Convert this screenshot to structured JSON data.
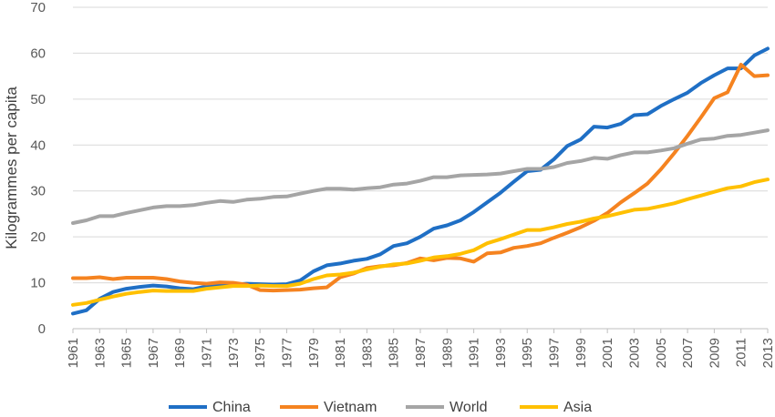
{
  "chart_data": {
    "type": "line",
    "title": "",
    "xlabel": "",
    "ylabel": "Kilogrammes per capita",
    "ylim": [
      0,
      70
    ],
    "y_ticks": [
      "0",
      "10",
      "20",
      "30",
      "40",
      "50",
      "60",
      "70"
    ],
    "x": [
      1961,
      1962,
      1963,
      1964,
      1965,
      1966,
      1967,
      1968,
      1969,
      1970,
      1971,
      1972,
      1973,
      1974,
      1975,
      1976,
      1977,
      1978,
      1979,
      1980,
      1981,
      1982,
      1983,
      1984,
      1985,
      1986,
      1987,
      1988,
      1989,
      1990,
      1991,
      1992,
      1993,
      1994,
      1995,
      1996,
      1997,
      1998,
      1999,
      2000,
      2001,
      2002,
      2003,
      2004,
      2005,
      2006,
      2007,
      2008,
      2009,
      2010,
      2011,
      2012,
      2013
    ],
    "x_ticks": [
      "1961",
      "1963",
      "1965",
      "1967",
      "1969",
      "1971",
      "1973",
      "1975",
      "1977",
      "1979",
      "1981",
      "1983",
      "1985",
      "1987",
      "1989",
      "1991",
      "1993",
      "1995",
      "1997",
      "1999",
      "2001",
      "2003",
      "2005",
      "2007",
      "2009",
      "2011",
      "2013"
    ],
    "grid": "horizontal",
    "legend_position": "bottom",
    "series": [
      {
        "name": "China",
        "color": "#1f6fc5",
        "values": [
          3.3,
          4.0,
          6.5,
          8.0,
          8.7,
          9.1,
          9.4,
          9.2,
          8.8,
          8.6,
          9.2,
          9.6,
          9.6,
          9.8,
          9.7,
          9.6,
          9.7,
          10.5,
          12.5,
          13.8,
          14.2,
          14.8,
          15.2,
          16.2,
          18.0,
          18.6,
          20.0,
          21.8,
          22.5,
          23.6,
          25.4,
          27.5,
          29.6,
          32.0,
          34.3,
          34.6,
          36.9,
          39.8,
          41.2,
          44.0,
          43.8,
          44.6,
          46.5,
          46.7,
          48.5,
          50.0,
          51.4,
          53.5,
          55.2,
          56.7,
          56.7,
          59.5,
          61.0
        ]
      },
      {
        "name": "Vietnam",
        "color": "#f58320",
        "values": [
          11.0,
          11.0,
          11.2,
          10.8,
          11.1,
          11.1,
          11.1,
          10.8,
          10.3,
          10.0,
          9.8,
          10.1,
          10.0,
          9.6,
          8.4,
          8.3,
          8.4,
          8.5,
          8.8,
          9.0,
          11.2,
          12.0,
          13.2,
          13.6,
          13.8,
          14.3,
          15.3,
          14.9,
          15.4,
          15.3,
          14.6,
          16.4,
          16.6,
          17.6,
          18.0,
          18.6,
          19.8,
          20.9,
          22.1,
          23.5,
          25.2,
          27.5,
          29.5,
          31.6,
          34.7,
          38.2,
          42.0,
          46.0,
          50.2,
          51.5,
          57.5,
          55.0,
          55.2
        ]
      },
      {
        "name": "World",
        "color": "#a5a5a5",
        "values": [
          23.0,
          23.6,
          24.5,
          24.5,
          25.2,
          25.8,
          26.4,
          26.7,
          26.7,
          26.9,
          27.4,
          27.8,
          27.6,
          28.1,
          28.3,
          28.7,
          28.8,
          29.4,
          30.0,
          30.5,
          30.5,
          30.3,
          30.6,
          30.8,
          31.4,
          31.6,
          32.2,
          33.0,
          33.0,
          33.4,
          33.5,
          33.6,
          33.8,
          34.3,
          34.8,
          34.8,
          35.2,
          36.1,
          36.5,
          37.2,
          37.0,
          37.8,
          38.4,
          38.4,
          38.8,
          39.3,
          40.3,
          41.2,
          41.4,
          42.0,
          42.2,
          42.7,
          43.2
        ]
      },
      {
        "name": "Asia",
        "color": "#ffc000",
        "values": [
          5.2,
          5.6,
          6.3,
          7.0,
          7.6,
          8.0,
          8.3,
          8.2,
          8.2,
          8.2,
          8.7,
          9.0,
          9.3,
          9.3,
          9.4,
          9.3,
          9.3,
          9.8,
          10.8,
          11.6,
          11.8,
          12.2,
          12.9,
          13.5,
          14.0,
          14.2,
          14.8,
          15.5,
          15.8,
          16.3,
          17.1,
          18.6,
          19.5,
          20.5,
          21.5,
          21.5,
          22.1,
          22.8,
          23.3,
          24.0,
          24.5,
          25.2,
          25.9,
          26.1,
          26.7,
          27.3,
          28.2,
          29.0,
          29.8,
          30.6,
          31.0,
          31.9,
          32.5
        ]
      }
    ]
  }
}
